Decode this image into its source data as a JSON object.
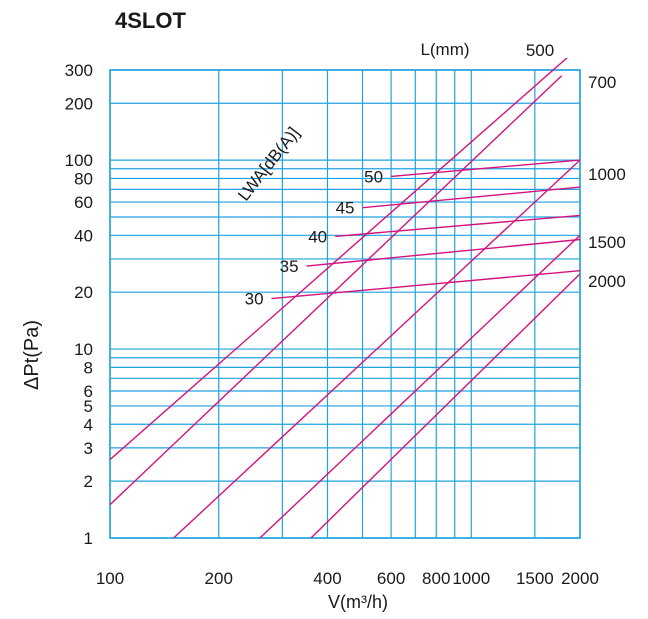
{
  "chart_data": {
    "type": "line",
    "title": "4SLOT",
    "xlabel": "V(m³/h)",
    "ylabel": "ΔPt(Pa)",
    "xscale": "log",
    "yscale": "log",
    "xlim": [
      100,
      2000
    ],
    "ylim": [
      1,
      300
    ],
    "grid": true,
    "x_ticks": [
      100,
      200,
      400,
      600,
      800,
      1000,
      1500,
      2000
    ],
    "x_tick_labels": [
      "100",
      "200",
      "400",
      "600",
      "800",
      "1000",
      "1500",
      "2000"
    ],
    "y_ticks": [
      1,
      2,
      3,
      4,
      5,
      6,
      8,
      10,
      20,
      40,
      60,
      80,
      100,
      200,
      300
    ],
    "y_tick_labels": [
      "1",
      "2",
      "3",
      "4",
      "5",
      "6",
      "8",
      "10",
      "20",
      "40",
      "60",
      "80",
      "100",
      "200",
      "300"
    ],
    "length_legend_title": "L(mm)",
    "length_series": [
      {
        "name": "500",
        "points": [
          [
            100,
            2.6
          ],
          [
            2000,
            400
          ]
        ]
      },
      {
        "name": "700",
        "points": [
          [
            100,
            1.5
          ],
          [
            1780,
            280
          ]
        ]
      },
      {
        "name": "1000",
        "points": [
          [
            150,
            1.0
          ],
          [
            2000,
            100
          ]
        ]
      },
      {
        "name": "1500",
        "points": [
          [
            260,
            1.0
          ],
          [
            2000,
            40
          ]
        ]
      },
      {
        "name": "2000",
        "points": [
          [
            360,
            1.0
          ],
          [
            2000,
            25
          ]
        ]
      }
    ],
    "sound_title": "LWA[dB(A)]",
    "sound_series": [
      {
        "name": "30",
        "points": [
          [
            280,
            18.5
          ],
          [
            2000,
            26
          ]
        ]
      },
      {
        "name": "35",
        "points": [
          [
            350,
            27.5
          ],
          [
            2000,
            38
          ]
        ]
      },
      {
        "name": "40",
        "points": [
          [
            420,
            39.5
          ],
          [
            2000,
            51
          ]
        ]
      },
      {
        "name": "45",
        "points": [
          [
            500,
            56
          ],
          [
            2000,
            72
          ]
        ]
      },
      {
        "name": "50",
        "points": [
          [
            600,
            82
          ],
          [
            2000,
            100
          ]
        ]
      }
    ],
    "colors": {
      "grid": "#1fa3df",
      "lines": "#d4127e",
      "text": "#1a1a1a"
    }
  }
}
